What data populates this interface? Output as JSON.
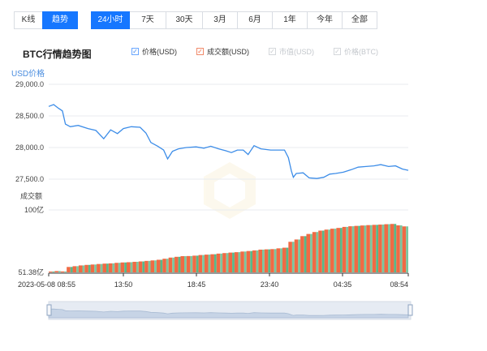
{
  "view_tabs": [
    "K线",
    "趋势"
  ],
  "view_active": 1,
  "range_tabs": [
    "24小时",
    "7天",
    "30天",
    "3月",
    "6月",
    "1年",
    "今年",
    "全部"
  ],
  "range_active": 0,
  "title": "BTC行情趋势图",
  "legend": [
    {
      "label": "价格(USD)",
      "checked": true,
      "color": "#3d8de8"
    },
    {
      "label": "成交额(USD)",
      "checked": true,
      "color": "#f06a44"
    },
    {
      "label": "市值(USD)",
      "checked": false,
      "color": "#c6c9cd"
    },
    {
      "label": "价格(BTC)",
      "checked": false,
      "color": "#c6c9cd"
    }
  ],
  "chart_data": [
    {
      "type": "line",
      "ylabel": "USD价格",
      "y_ticks": [
        "29,000.0",
        "28,500.0",
        "28,000.0",
        "27,500.0"
      ],
      "ylim": [
        27500,
        29000
      ],
      "x_tick_labels": [
        "2023-05-08 08:55",
        "13:50",
        "18:45",
        "23:40",
        "04:35",
        "08:54"
      ],
      "series": [
        {
          "name": "价格(USD)",
          "color": "#3d8de8"
        }
      ],
      "points": [
        [
          0,
          28650
        ],
        [
          0.5,
          28680
        ],
        [
          1.0,
          28620
        ],
        [
          1.4,
          28580
        ],
        [
          1.7,
          28370
        ],
        [
          2.2,
          28330
        ],
        [
          3.0,
          28350
        ],
        [
          4.0,
          28300
        ],
        [
          4.8,
          28270
        ],
        [
          5.6,
          28140
        ],
        [
          6.3,
          28280
        ],
        [
          7.0,
          28220
        ],
        [
          7.6,
          28300
        ],
        [
          8.4,
          28330
        ],
        [
          9.3,
          28320
        ],
        [
          9.9,
          28230
        ],
        [
          10.4,
          28080
        ],
        [
          11.1,
          28020
        ],
        [
          11.7,
          27960
        ],
        [
          12.1,
          27820
        ],
        [
          12.6,
          27940
        ],
        [
          13.2,
          27980
        ],
        [
          14.0,
          28000
        ],
        [
          15.0,
          28010
        ],
        [
          15.8,
          27990
        ],
        [
          16.5,
          28020
        ],
        [
          17.3,
          27980
        ],
        [
          18.0,
          27950
        ],
        [
          18.6,
          27920
        ],
        [
          19.2,
          27960
        ],
        [
          19.8,
          27960
        ],
        [
          20.3,
          27890
        ],
        [
          20.9,
          28030
        ],
        [
          21.6,
          27980
        ],
        [
          22.6,
          27960
        ],
        [
          23.4,
          27960
        ],
        [
          24.0,
          27960
        ],
        [
          24.4,
          27840
        ],
        [
          24.7,
          27630
        ],
        [
          24.9,
          27530
        ],
        [
          25.2,
          27590
        ],
        [
          25.9,
          27600
        ],
        [
          26.5,
          27520
        ],
        [
          27.3,
          27510
        ],
        [
          28.0,
          27530
        ],
        [
          28.6,
          27580
        ],
        [
          29.2,
          27590
        ],
        [
          30.0,
          27610
        ],
        [
          30.8,
          27650
        ],
        [
          31.5,
          27690
        ],
        [
          32.3,
          27700
        ],
        [
          33.1,
          27710
        ],
        [
          33.8,
          27730
        ],
        [
          34.6,
          27700
        ],
        [
          35.3,
          27710
        ],
        [
          36.0,
          27660
        ],
        [
          36.6,
          27640
        ]
      ],
      "x_max": 36.6
    },
    {
      "type": "bar",
      "ylabel": "成交额",
      "y_ticks": [
        "100亿",
        "51.38亿"
      ],
      "ylim": [
        51.38,
        100
      ],
      "series": [
        {
          "name": "成交额(USD)",
          "color": "#f06a44"
        }
      ],
      "values": [
        52.0,
        52.4,
        52.1,
        55.6,
        56.2,
        56.8,
        57.2,
        57.5,
        57.9,
        58.2,
        58.4,
        58.8,
        59.1,
        59.3,
        59.6,
        59.9,
        60.3,
        60.7,
        61.2,
        62.0,
        62.9,
        63.5,
        64.0,
        64.1,
        64.4,
        64.9,
        65.2,
        65.5,
        66.0,
        66.4,
        66.8,
        67.1,
        67.6,
        68.0,
        68.5,
        69.1,
        69.3,
        69.5,
        70.1,
        70.6,
        75.2,
        77.0,
        79.6,
        81.3,
        82.8,
        83.9,
        84.7,
        85.4,
        86.0,
        86.8,
        87.3,
        87.6,
        87.9,
        88.2,
        88.4,
        88.6,
        88.9,
        89.1,
        88.0,
        87.2
      ]
    }
  ]
}
